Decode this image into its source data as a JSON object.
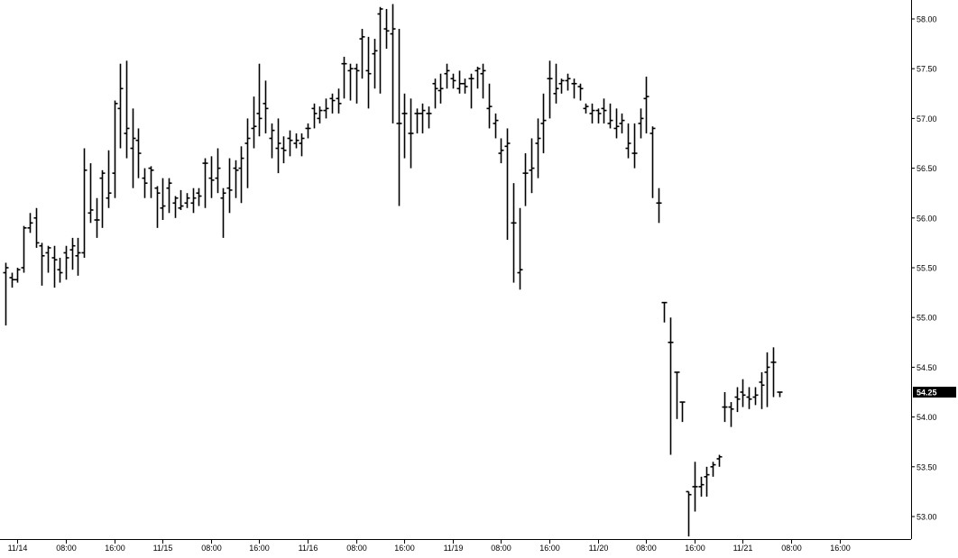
{
  "chart_data": {
    "type": "ohlc",
    "title": "",
    "xlabel": "",
    "ylabel": "",
    "ylim": [
      52.8,
      58.2
    ],
    "grid": false,
    "legend": "none",
    "price_axis_side": "right",
    "yticks": [
      "53.00",
      "53.50",
      "54.00",
      "54.50",
      "55.00",
      "55.50",
      "56.00",
      "56.50",
      "57.00",
      "57.50",
      "58.00"
    ],
    "xticks": [
      {
        "label": "11/14",
        "bar": 2
      },
      {
        "label": "08:00",
        "bar": 10
      },
      {
        "label": "16:00",
        "bar": 18
      },
      {
        "label": "11/15",
        "bar": 26
      },
      {
        "label": "08:00",
        "bar": 34
      },
      {
        "label": "16:00",
        "bar": 42
      },
      {
        "label": "11/16",
        "bar": 50
      },
      {
        "label": "08:00",
        "bar": 58
      },
      {
        "label": "16:00",
        "bar": 66
      },
      {
        "label": "11/19",
        "bar": 74
      },
      {
        "label": "08:00",
        "bar": 82
      },
      {
        "label": "16:00",
        "bar": 90
      },
      {
        "label": "11/20",
        "bar": 98
      },
      {
        "label": "08:00",
        "bar": 106
      },
      {
        "label": "16:00",
        "bar": 114
      },
      {
        "label": "11/21",
        "bar": 122
      },
      {
        "label": "08:00",
        "bar": 130
      },
      {
        "label": "16:00",
        "bar": 138
      }
    ],
    "last_price": {
      "label": "54.25",
      "value": 54.25
    },
    "colors": {
      "bars": "#000000",
      "background": "#ffffff",
      "last_price_bg": "#000000",
      "last_price_text": "#ffffff"
    },
    "bars": [
      [
        55.45,
        55.55,
        54.92,
        55.5
      ],
      [
        55.4,
        55.45,
        55.3,
        55.38
      ],
      [
        55.38,
        55.5,
        55.35,
        55.48
      ],
      [
        55.5,
        55.92,
        55.45,
        55.9
      ],
      [
        55.9,
        56.05,
        55.85,
        55.95
      ],
      [
        56.0,
        56.1,
        55.7,
        55.75
      ],
      [
        55.72,
        55.75,
        55.32,
        55.62
      ],
      [
        55.65,
        55.72,
        55.45,
        55.7
      ],
      [
        55.6,
        55.72,
        55.3,
        55.58
      ],
      [
        55.48,
        55.6,
        55.35,
        55.45
      ],
      [
        55.65,
        55.72,
        55.38,
        55.6
      ],
      [
        55.68,
        55.8,
        55.48,
        55.72
      ],
      [
        55.62,
        55.8,
        55.42,
        55.65
      ],
      [
        55.65,
        56.7,
        55.6,
        56.48
      ],
      [
        56.05,
        56.55,
        55.95,
        56.08
      ],
      [
        55.98,
        56.2,
        55.8,
        55.98
      ],
      [
        56.4,
        56.48,
        55.9,
        56.45
      ],
      [
        56.2,
        56.68,
        56.1,
        56.25
      ],
      [
        56.45,
        57.18,
        56.2,
        57.15
      ],
      [
        57.1,
        57.55,
        56.7,
        57.3
      ],
      [
        56.85,
        57.58,
        56.6,
        56.9
      ],
      [
        56.7,
        57.1,
        56.3,
        56.8
      ],
      [
        56.78,
        56.9,
        56.4,
        56.65
      ],
      [
        56.4,
        56.5,
        56.2,
        56.35
      ],
      [
        56.5,
        56.52,
        56.2,
        56.48
      ],
      [
        56.3,
        56.32,
        55.9,
        56.25
      ],
      [
        56.1,
        56.4,
        55.98,
        56.12
      ],
      [
        56.3,
        56.4,
        56.05,
        56.35
      ],
      [
        56.15,
        56.22,
        56.0,
        56.2
      ],
      [
        56.1,
        56.28,
        56.08,
        56.12
      ],
      [
        56.15,
        56.25,
        56.1,
        56.2
      ],
      [
        56.15,
        56.3,
        56.05,
        56.2
      ],
      [
        56.25,
        56.3,
        56.12,
        56.22
      ],
      [
        56.55,
        56.6,
        56.1,
        56.55
      ],
      [
        56.4,
        56.62,
        56.2,
        56.38
      ],
      [
        56.4,
        56.7,
        56.25,
        56.5
      ],
      [
        56.2,
        56.3,
        55.8,
        56.25
      ],
      [
        56.3,
        56.6,
        56.05,
        56.28
      ],
      [
        56.5,
        56.58,
        56.2,
        56.48
      ],
      [
        56.5,
        56.72,
        56.15,
        56.6
      ],
      [
        56.75,
        57.0,
        56.3,
        56.8
      ],
      [
        56.9,
        57.22,
        56.7,
        56.92
      ],
      [
        57.05,
        57.55,
        56.82,
        57.0
      ],
      [
        57.15,
        57.38,
        56.85,
        57.1
      ],
      [
        56.8,
        56.95,
        56.6,
        56.88
      ],
      [
        56.7,
        57.0,
        56.45,
        56.75
      ],
      [
        56.7,
        56.82,
        56.55,
        56.68
      ],
      [
        56.8,
        56.88,
        56.62,
        56.78
      ],
      [
        56.75,
        56.85,
        56.7,
        56.78
      ],
      [
        56.75,
        56.85,
        56.62,
        56.8
      ],
      [
        56.9,
        56.95,
        56.8,
        56.9
      ],
      [
        57.1,
        57.15,
        56.9,
        57.05
      ],
      [
        57.0,
        57.12,
        56.95,
        57.08
      ],
      [
        57.08,
        57.2,
        57.0,
        57.1
      ],
      [
        57.2,
        57.25,
        57.05,
        57.18
      ],
      [
        57.2,
        57.3,
        57.05,
        57.15
      ],
      [
        57.55,
        57.62,
        57.2,
        57.55
      ],
      [
        57.48,
        57.55,
        57.18,
        57.5
      ],
      [
        57.5,
        57.55,
        57.15,
        57.48
      ],
      [
        57.8,
        57.9,
        57.4,
        57.82
      ],
      [
        57.48,
        57.82,
        57.1,
        57.45
      ],
      [
        57.65,
        57.8,
        57.3,
        57.68
      ],
      [
        58.05,
        58.12,
        57.25,
        58.1
      ],
      [
        57.9,
        58.1,
        57.7,
        57.88
      ],
      [
        57.85,
        58.15,
        56.95,
        57.9
      ],
      [
        56.95,
        57.9,
        56.12,
        56.95
      ],
      [
        57.05,
        57.25,
        56.6,
        57.05
      ],
      [
        56.85,
        57.2,
        56.5,
        56.85
      ],
      [
        57.05,
        57.1,
        56.85,
        57.05
      ],
      [
        57.05,
        57.15,
        56.85,
        57.08
      ],
      [
        57.05,
        57.12,
        56.9,
        57.05
      ],
      [
        57.35,
        57.4,
        57.1,
        57.3
      ],
      [
        57.28,
        57.45,
        57.15,
        57.3
      ],
      [
        57.45,
        57.55,
        57.3,
        57.48
      ],
      [
        57.4,
        57.45,
        57.3,
        57.38
      ],
      [
        57.3,
        57.48,
        57.25,
        57.35
      ],
      [
        57.35,
        57.4,
        57.25,
        57.32
      ],
      [
        57.4,
        57.45,
        57.1,
        57.4
      ],
      [
        57.48,
        57.52,
        57.3,
        57.5
      ],
      [
        57.45,
        57.55,
        57.2,
        57.48
      ],
      [
        57.1,
        57.35,
        56.9,
        57.12
      ],
      [
        56.95,
        57.05,
        56.8,
        56.98
      ],
      [
        56.65,
        56.8,
        56.55,
        56.68
      ],
      [
        56.72,
        56.9,
        55.78,
        56.75
      ],
      [
        55.95,
        56.35,
        55.35,
        55.95
      ],
      [
        55.45,
        56.1,
        55.28,
        55.48
      ],
      [
        56.45,
        56.65,
        56.12,
        56.45
      ],
      [
        56.48,
        56.8,
        56.25,
        56.5
      ],
      [
        56.75,
        57.0,
        56.4,
        56.8
      ],
      [
        56.95,
        57.25,
        56.65,
        56.98
      ],
      [
        57.4,
        57.58,
        57.0,
        57.4
      ],
      [
        57.25,
        57.55,
        57.15,
        57.3
      ],
      [
        57.35,
        57.4,
        57.25,
        57.38
      ],
      [
        57.38,
        57.45,
        57.28,
        57.4
      ],
      [
        57.35,
        57.4,
        57.2,
        57.35
      ],
      [
        57.32,
        57.35,
        57.18,
        57.3
      ],
      [
        57.1,
        57.15,
        57.05,
        57.12
      ],
      [
        57.05,
        57.15,
        56.95,
        57.08
      ],
      [
        57.08,
        57.1,
        56.95,
        57.05
      ],
      [
        57.1,
        57.2,
        56.95,
        57.08
      ],
      [
        56.95,
        57.15,
        56.9,
        56.98
      ],
      [
        56.9,
        57.1,
        56.8,
        56.92
      ],
      [
        56.95,
        57.05,
        56.85,
        56.98
      ],
      [
        56.7,
        56.95,
        56.6,
        56.75
      ],
      [
        56.65,
        56.95,
        56.5,
        56.65
      ],
      [
        56.95,
        57.1,
        56.8,
        57.0
      ],
      [
        57.2,
        57.42,
        56.85,
        57.22
      ],
      [
        56.85,
        56.92,
        56.2,
        56.9
      ],
      [
        56.15,
        56.3,
        55.95,
        56.15
      ],
      [
        55.15,
        55.15,
        54.95,
        55.15
      ],
      [
        54.75,
        55.0,
        53.62,
        54.75
      ],
      [
        54.45,
        54.45,
        53.98,
        54.45
      ],
      [
        54.15,
        54.15,
        53.95,
        54.15
      ],
      [
        53.25,
        53.25,
        52.8,
        53.22
      ],
      [
        53.3,
        53.55,
        53.05,
        53.3
      ],
      [
        53.3,
        53.4,
        53.2,
        53.32
      ],
      [
        53.4,
        53.5,
        53.2,
        53.42
      ],
      [
        53.5,
        53.55,
        53.4,
        53.52
      ],
      [
        53.58,
        53.62,
        53.5,
        53.6
      ],
      [
        54.1,
        54.25,
        53.95,
        54.1
      ],
      [
        54.1,
        54.15,
        53.9,
        54.08
      ],
      [
        54.2,
        54.3,
        54.05,
        54.18
      ],
      [
        54.25,
        54.38,
        54.1,
        54.22
      ],
      [
        54.2,
        54.3,
        54.08,
        54.18
      ],
      [
        54.2,
        54.3,
        54.12,
        54.22
      ],
      [
        54.35,
        54.45,
        54.08,
        54.32
      ],
      [
        54.45,
        54.65,
        54.1,
        54.5
      ],
      [
        54.55,
        54.7,
        54.2,
        54.55
      ],
      [
        54.25,
        54.25,
        54.2,
        54.25
      ]
    ]
  }
}
